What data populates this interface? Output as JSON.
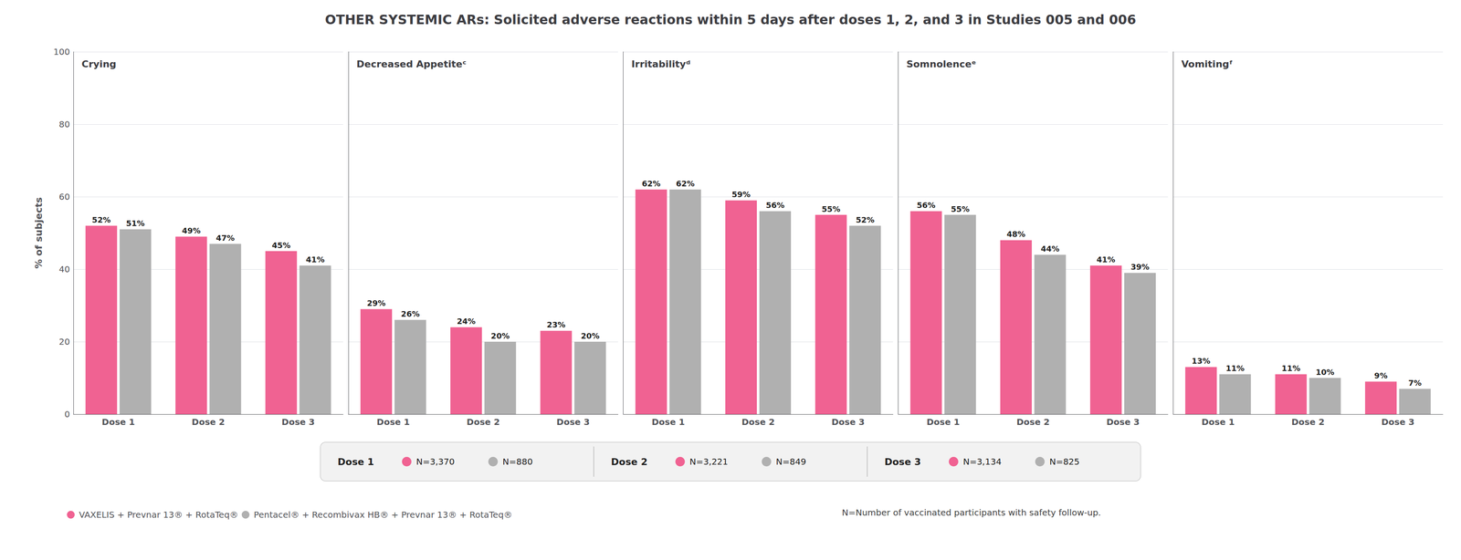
{
  "title": "OTHER SYSTEMIC ARs: Solicited adverse reactions within 5 days after doses 1, 2, and 3 in Studies 005 and 006",
  "chart_data": [
    {
      "type": "bar",
      "title": "Crying",
      "ylabel": "% of subjects",
      "categories": [
        "Dose 1",
        "Dose 2",
        "Dose 3"
      ],
      "series": [
        {
          "name": "VAXELIS + Prevnar 13® + RotaTeq®",
          "color": "#f06292",
          "values": [
            52,
            49,
            45
          ],
          "value_labels": [
            "52%",
            "49%",
            "45%"
          ]
        },
        {
          "name": "Pentacel® + Recombivax HB® + Prevnar 13® + RotaTeq®",
          "color": "#b0b0b0",
          "values": [
            51,
            47,
            41
          ],
          "value_labels": [
            "51%",
            "47%",
            "41%"
          ]
        }
      ],
      "ylim": [
        0,
        100
      ],
      "yticks": [
        0,
        20,
        40,
        60,
        80,
        100
      ],
      "grid": true,
      "data_labels": true,
      "legend": "bottom"
    },
    {
      "type": "bar",
      "title": "Decreased Appetiteᶜ",
      "categories": [
        "Dose 1",
        "Dose 2",
        "Dose 3"
      ],
      "series": [
        {
          "name": "VAXELIS + Prevnar 13® + RotaTeq®",
          "color": "#f06292",
          "values": [
            29,
            24,
            23
          ],
          "value_labels": [
            "29%",
            "24%",
            "23%"
          ]
        },
        {
          "name": "Pentacel® + Recombivax HB® + Prevnar 13® + RotaTeq®",
          "color": "#b0b0b0",
          "values": [
            26,
            20,
            20
          ],
          "value_labels": [
            "26%",
            "20%",
            "20%"
          ]
        }
      ],
      "ylim": [
        0,
        100
      ],
      "yticks": [
        0,
        20,
        40,
        60,
        80,
        100
      ],
      "grid": true,
      "data_labels": true,
      "tick_labels": "x"
    },
    {
      "type": "bar",
      "title": "Irritabilityᵈ",
      "categories": [
        "Dose 1",
        "Dose 2",
        "Dose 3"
      ],
      "series": [
        {
          "name": "VAXELIS + Prevnar 13® + RotaTeq®",
          "color": "#f06292",
          "values": [
            62,
            59,
            55
          ],
          "value_labels": [
            "62%",
            "59%",
            "55%"
          ]
        },
        {
          "name": "Pentacel® + Recombivax HB® + Prevnar 13® + RotaTeq®",
          "color": "#b0b0b0",
          "values": [
            62,
            56,
            52
          ],
          "value_labels": [
            "62%",
            "56%",
            "52%"
          ]
        }
      ],
      "ylim": [
        0,
        100
      ],
      "yticks": [
        0,
        20,
        40,
        60,
        80,
        100
      ],
      "grid": true,
      "data_labels": true,
      "tick_labels": "x"
    },
    {
      "type": "bar",
      "title": "Somnolenceᵉ",
      "categories": [
        "Dose 1",
        "Dose 2",
        "Dose 3"
      ],
      "series": [
        {
          "name": "VAXELIS + Prevnar 13® + RotaTeq®",
          "color": "#f06292",
          "values": [
            56,
            48,
            41
          ],
          "value_labels": [
            "56%",
            "48%",
            "41%"
          ]
        },
        {
          "name": "Pentacel® + Recombivax HB® + Prevnar 13® + RotaTeq®",
          "color": "#b0b0b0",
          "values": [
            55,
            44,
            39
          ],
          "value_labels": [
            "55%",
            "44%",
            "39%"
          ]
        }
      ],
      "ylim": [
        0,
        100
      ],
      "yticks": [
        0,
        20,
        40,
        60,
        80,
        100
      ],
      "grid": true,
      "data_labels": true,
      "tick_labels": "x"
    },
    {
      "type": "bar",
      "title": "Vomitingᶠ",
      "categories": [
        "Dose 1",
        "Dose 2",
        "Dose 3"
      ],
      "series": [
        {
          "name": "VAXELIS + Prevnar 13® + RotaTeq®",
          "color": "#f06292",
          "values": [
            13,
            11,
            9
          ],
          "value_labels": [
            "13%",
            "11%",
            "9%"
          ]
        },
        {
          "name": "Pentacel® + Recombivax HB® + Prevnar 13® + RotaTeq®",
          "color": "#b0b0b0",
          "values": [
            11,
            10,
            7
          ],
          "value_labels": [
            "11%",
            "10%",
            "7%"
          ]
        }
      ],
      "ylim": [
        0,
        100
      ],
      "yticks": [
        0,
        20,
        40,
        60,
        80,
        100
      ],
      "grid": true,
      "data_labels": true,
      "tick_labels": "x"
    }
  ],
  "dose_legend": [
    {
      "label": "Dose 1",
      "n": [
        "N=3,370",
        "N=880"
      ]
    },
    {
      "label": "Dose 2",
      "n": [
        "N=3,221",
        "N=849"
      ]
    },
    {
      "label": "Dose 3",
      "n": [
        "N=3,134",
        "N=825"
      ]
    }
  ],
  "annotations": [
    "N=Number of vaccinated participants with safety follow-up."
  ]
}
